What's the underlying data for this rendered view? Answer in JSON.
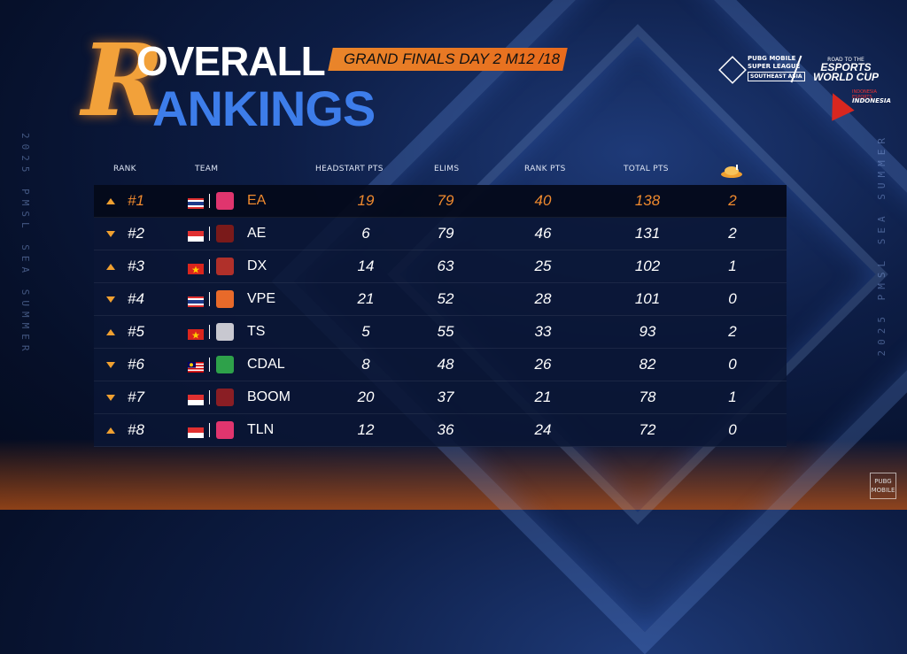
{
  "title": {
    "initial": "R",
    "line1": "OVERALL",
    "line2": "ANKINGS"
  },
  "subtitle": "GRAND FINALS  DAY 2  M12 /18",
  "side_text": {
    "left": "2025 PMSL SEA SUMMER",
    "right": "2025 PMSL SEA SUMMER"
  },
  "logos": {
    "pmsl_line1": "PUBG MOBILE",
    "pmsl_line2": "SUPER LEAGUE",
    "pmsl_region": "SOUTHEAST ASIA",
    "ewc_small": "ROAD TO THE",
    "ewc_line1": "ESPORTS",
    "ewc_line2": "WORLD CUP",
    "indo_small": "INDONESIA ESPORTS",
    "indo_text": "INDONESIA",
    "pubg_mark": "PUBG MOBILE"
  },
  "headers": {
    "rank": "RANK",
    "team": "TEAM",
    "headstart": "HEADSTART PTS",
    "elims": "ELIMS",
    "rank_pts": "RANK PTS",
    "total_pts": "TOTAL PTS",
    "wins_icon": "chicken-dinner-icon"
  },
  "colors": {
    "accent": "#f08a2e",
    "arrow": "#f0a030",
    "title_blue": "#3d7dea"
  },
  "rows": [
    {
      "trend": "up",
      "rank": "#1",
      "flag": "thailand",
      "team": "EA",
      "logo_color": "#e0356e",
      "headstart": "19",
      "elims": "79",
      "rank_pts": "40",
      "total": "138",
      "wins": "2"
    },
    {
      "trend": "down",
      "rank": "#2",
      "flag": "indonesia",
      "team": "AE",
      "logo_color": "#7a1a1a",
      "headstart": "6",
      "elims": "79",
      "rank_pts": "46",
      "total": "131",
      "wins": "2"
    },
    {
      "trend": "up",
      "rank": "#3",
      "flag": "vietnam",
      "team": "DX",
      "logo_color": "#b0302a",
      "headstart": "14",
      "elims": "63",
      "rank_pts": "25",
      "total": "102",
      "wins": "1"
    },
    {
      "trend": "down",
      "rank": "#4",
      "flag": "thailand",
      "team": "VPE",
      "logo_color": "#e86a2a",
      "headstart": "21",
      "elims": "52",
      "rank_pts": "28",
      "total": "101",
      "wins": "0"
    },
    {
      "trend": "up",
      "rank": "#5",
      "flag": "vietnam",
      "team": "TS",
      "logo_color": "#c8c8d0",
      "headstart": "5",
      "elims": "55",
      "rank_pts": "33",
      "total": "93",
      "wins": "2"
    },
    {
      "trend": "down",
      "rank": "#6",
      "flag": "malaysia",
      "team": "CDAL",
      "logo_color": "#2ea14a",
      "headstart": "8",
      "elims": "48",
      "rank_pts": "26",
      "total": "82",
      "wins": "0"
    },
    {
      "trend": "down",
      "rank": "#7",
      "flag": "indonesia",
      "team": "BOOM",
      "logo_color": "#8a1e24",
      "headstart": "20",
      "elims": "37",
      "rank_pts": "21",
      "total": "78",
      "wins": "1"
    },
    {
      "trend": "up",
      "rank": "#8",
      "flag": "indonesia",
      "team": "TLN",
      "logo_color": "#e0356e",
      "headstart": "12",
      "elims": "36",
      "rank_pts": "24",
      "total": "72",
      "wins": "0"
    }
  ]
}
